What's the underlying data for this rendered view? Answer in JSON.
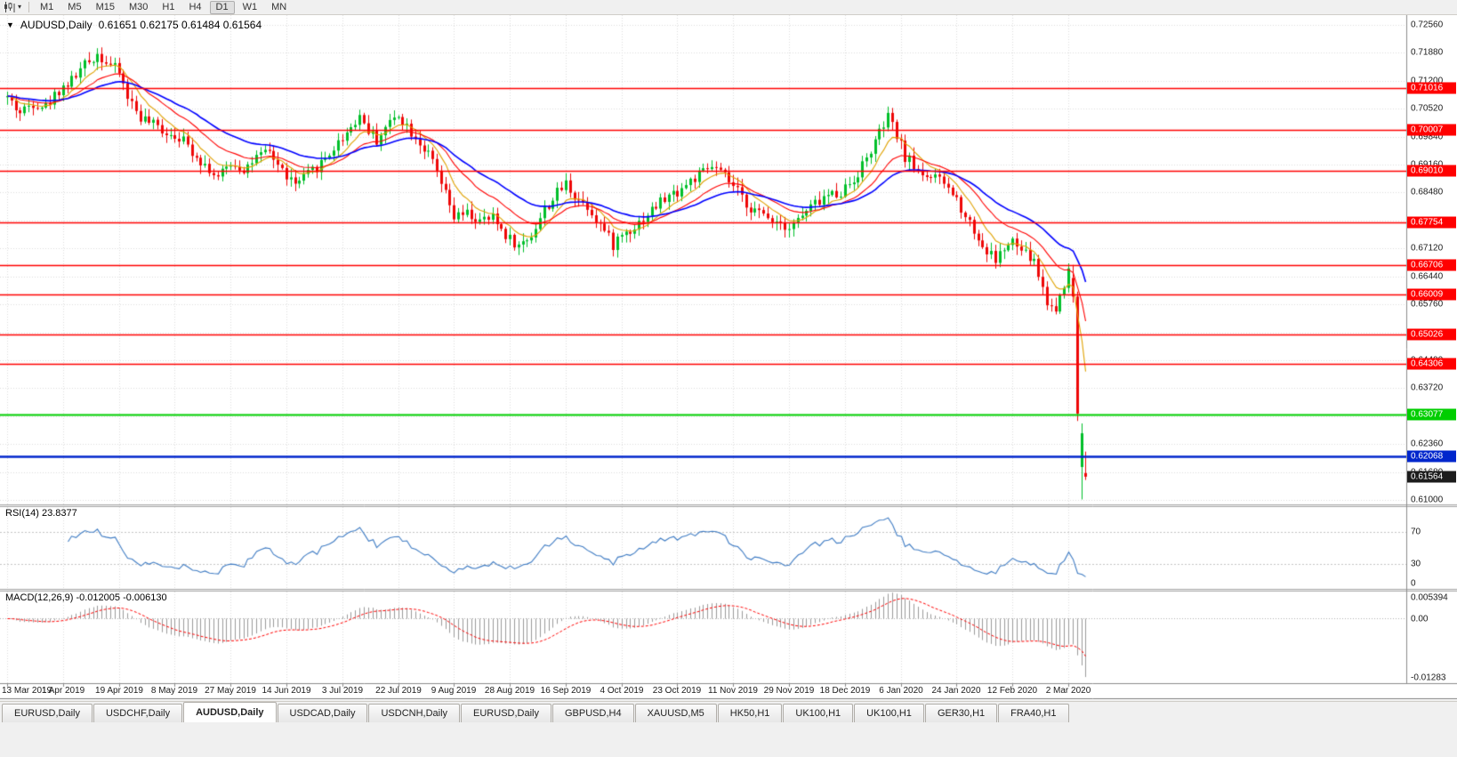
{
  "toolbar": {
    "timeframes": [
      "M1",
      "M5",
      "M15",
      "M30",
      "H1",
      "H4",
      "D1",
      "W1",
      "MN"
    ],
    "active_timeframe": "D1"
  },
  "price_chart": {
    "title_symbol": "AUDUSD,Daily",
    "title_ohlc": "0.61651 0.62175 0.61484 0.61564",
    "axis": {
      "top_price": 0.728,
      "bottom_price": 0.6089,
      "labels": [
        "0.72560",
        "0.71880",
        "0.71200",
        "0.70520",
        "0.69840",
        "0.69160",
        "0.68480",
        "0.67800",
        "0.67120",
        "0.66440",
        "0.65760",
        "0.65080",
        "0.64400",
        "0.63720",
        "0.63040",
        "0.62360",
        "0.61680",
        "0.61000"
      ]
    },
    "hlines": [
      {
        "price": 0.71016,
        "label": "0.71016",
        "color": "#ff0000",
        "width": 1.4
      },
      {
        "price": 0.70007,
        "label": "0.70007",
        "color": "#ff0000",
        "width": 1.4
      },
      {
        "price": 0.6901,
        "label": "0.69010",
        "color": "#ff0000",
        "width": 1.4
      },
      {
        "price": 0.67754,
        "label": "0.67754",
        "color": "#ff0000",
        "width": 1.4
      },
      {
        "price": 0.66706,
        "label": "0.66706",
        "color": "#ff0000",
        "width": 1.4
      },
      {
        "price": 0.66009,
        "label": "0.66009",
        "color": "#ff0000",
        "width": 1.4
      },
      {
        "price": 0.65026,
        "label": "0.65026",
        "color": "#ff0000",
        "width": 1.4
      },
      {
        "price": 0.64306,
        "label": "0.64306",
        "color": "#ff0000",
        "width": 1.4
      },
      {
        "price": 0.63077,
        "label": "0.63077",
        "color": "#00ce00",
        "width": 2
      },
      {
        "price": 0.62068,
        "label": "0.62068",
        "color": "#0026cc",
        "width": 2.6
      }
    ],
    "bid": {
      "price": 0.61564,
      "label": "0.61564",
      "color": "#1c1c1c"
    },
    "date_ticks": [
      {
        "label": "13 Mar 2019",
        "i": 0
      },
      {
        "label": "1 Apr 2019",
        "i": 13
      },
      {
        "label": "19 Apr 2019",
        "i": 26
      },
      {
        "label": "8 May 2019",
        "i": 39
      },
      {
        "label": "27 May 2019",
        "i": 52
      },
      {
        "label": "14 Jun 2019",
        "i": 65
      },
      {
        "label": "3 Jul 2019",
        "i": 78
      },
      {
        "label": "22 Jul 2019",
        "i": 91
      },
      {
        "label": "9 Aug 2019",
        "i": 104
      },
      {
        "label": "28 Aug 2019",
        "i": 117
      },
      {
        "label": "16 Sep 2019",
        "i": 130
      },
      {
        "label": "4 Oct 2019",
        "i": 143
      },
      {
        "label": "23 Oct 2019",
        "i": 156
      },
      {
        "label": "11 Nov 2019",
        "i": 169
      },
      {
        "label": "29 Nov 2019",
        "i": 182
      },
      {
        "label": "18 Dec 2019",
        "i": 195
      },
      {
        "label": "6 Jan 2020",
        "i": 208
      },
      {
        "label": "24 Jan 2020",
        "i": 221
      },
      {
        "label": "12 Feb 2020",
        "i": 234
      },
      {
        "label": "2 Mar 2020",
        "i": 247
      }
    ],
    "candles": {
      "count": 252,
      "seed": 42,
      "up_color": "#00bf2a",
      "down_color": "#ee0707",
      "anchors": [
        [
          0,
          0.708
        ],
        [
          3,
          0.7042
        ],
        [
          6,
          0.7068
        ],
        [
          9,
          0.7058
        ],
        [
          12,
          0.7098
        ],
        [
          15,
          0.7122
        ],
        [
          18,
          0.7158
        ],
        [
          21,
          0.7186
        ],
        [
          23,
          0.7168
        ],
        [
          26,
          0.714
        ],
        [
          28,
          0.7082
        ],
        [
          31,
          0.7032
        ],
        [
          34,
          0.7012
        ],
        [
          37,
          0.6996
        ],
        [
          40,
          0.6986
        ],
        [
          43,
          0.695
        ],
        [
          46,
          0.6916
        ],
        [
          49,
          0.6882
        ],
        [
          52,
          0.6921
        ],
        [
          55,
          0.6906
        ],
        [
          58,
          0.6931
        ],
        [
          61,
          0.6946
        ],
        [
          64,
          0.6901
        ],
        [
          67,
          0.6866
        ],
        [
          70,
          0.6891
        ],
        [
          73,
          0.6921
        ],
        [
          76,
          0.6956
        ],
        [
          79,
          0.6996
        ],
        [
          82,
          0.7036
        ],
        [
          84,
          0.7001
        ],
        [
          86,
          0.6976
        ],
        [
          88,
          0.7006
        ],
        [
          91,
          0.7041
        ],
        [
          93,
          0.7011
        ],
        [
          96,
          0.6971
        ],
        [
          99,
          0.6921
        ],
        [
          102,
          0.6841
        ],
        [
          104,
          0.6786
        ],
        [
          107,
          0.6796
        ],
        [
          110,
          0.6776
        ],
        [
          113,
          0.6786
        ],
        [
          116,
          0.6746
        ],
        [
          119,
          0.6716
        ],
        [
          122,
          0.6746
        ],
        [
          125,
          0.6806
        ],
        [
          128,
          0.6846
        ],
        [
          130,
          0.6871
        ],
        [
          132,
          0.6841
        ],
        [
          135,
          0.6816
        ],
        [
          138,
          0.6771
        ],
        [
          141,
          0.6721
        ],
        [
          143,
          0.6746
        ],
        [
          146,
          0.6766
        ],
        [
          149,
          0.6796
        ],
        [
          152,
          0.6826
        ],
        [
          156,
          0.6851
        ],
        [
          159,
          0.6876
        ],
        [
          162,
          0.6896
        ],
        [
          164,
          0.6911
        ],
        [
          167,
          0.6886
        ],
        [
          169,
          0.6861
        ],
        [
          172,
          0.6821
        ],
        [
          175,
          0.6796
        ],
        [
          178,
          0.6786
        ],
        [
          182,
          0.6766
        ],
        [
          185,
          0.6791
        ],
        [
          188,
          0.6821
        ],
        [
          191,
          0.6841
        ],
        [
          194,
          0.6851
        ],
        [
          197,
          0.6881
        ],
        [
          200,
          0.6931
        ],
        [
          203,
          0.6991
        ],
        [
          205,
          0.7031
        ],
        [
          207,
          0.6986
        ],
        [
          209,
          0.6936
        ],
        [
          212,
          0.6901
        ],
        [
          215,
          0.6886
        ],
        [
          218,
          0.6871
        ],
        [
          221,
          0.6831
        ],
        [
          224,
          0.6776
        ],
        [
          227,
          0.6716
        ],
        [
          230,
          0.6686
        ],
        [
          232,
          0.6711
        ],
        [
          234,
          0.6726
        ],
        [
          236,
          0.6706
        ],
        [
          239,
          0.6681
        ],
        [
          242,
          0.6581
        ],
        [
          244,
          0.6561
        ],
        [
          245,
          0.6601
        ],
        [
          247,
          0.6656
        ],
        [
          251,
          0.6156
        ]
      ],
      "overrides": [
        {
          "i": 248,
          "o": 0.664,
          "h": 0.6672,
          "l": 0.658,
          "c": 0.6595
        },
        {
          "i": 249,
          "o": 0.6595,
          "h": 0.6607,
          "l": 0.6292,
          "c": 0.631
        },
        {
          "i": 250,
          "o": 0.618,
          "h": 0.6286,
          "l": 0.6101,
          "c": 0.6262
        },
        {
          "i": 251,
          "o": 0.61651,
          "h": 0.62175,
          "l": 0.61484,
          "c": 0.61564
        }
      ]
    },
    "mas": [
      {
        "period": 8,
        "color": "#e0a200"
      },
      {
        "period": 18,
        "color": "#ff0000"
      },
      {
        "period": 34,
        "color": "#0000ff"
      }
    ]
  },
  "rsi_pane": {
    "label": "RSI(14) 23.8377",
    "period": 14,
    "line_color": "#3f7cc4",
    "levels": [
      {
        "value": 70,
        "label": "70"
      },
      {
        "value": 30,
        "label": "30"
      },
      {
        "value": 0,
        "label": "0"
      }
    ]
  },
  "macd_pane": {
    "label": "MACD(12,26,9) -0.012005 -0.006130",
    "fast": 12,
    "slow": 26,
    "signal_period": 9,
    "vmax": 0.005394,
    "vmin": -0.01283,
    "hist_color": "#9a9a9a",
    "signal_color": "#ff0000",
    "axis_labels": {
      "top": "0.005394",
      "zero": "0.00",
      "bottom": "-0.01283"
    }
  },
  "tabs": {
    "active_index": 2,
    "items": [
      "EURUSD,Daily",
      "USDCHF,Daily",
      "AUDUSD,Daily",
      "USDCAD,Daily",
      "USDCNH,Daily",
      "EURUSD,Daily",
      "GBPUSD,H4",
      "XAUUSD,M5",
      "HK50,H1",
      "UK100,H1",
      "UK100,H1",
      "GER30,H1",
      "FRA40,H1"
    ]
  }
}
